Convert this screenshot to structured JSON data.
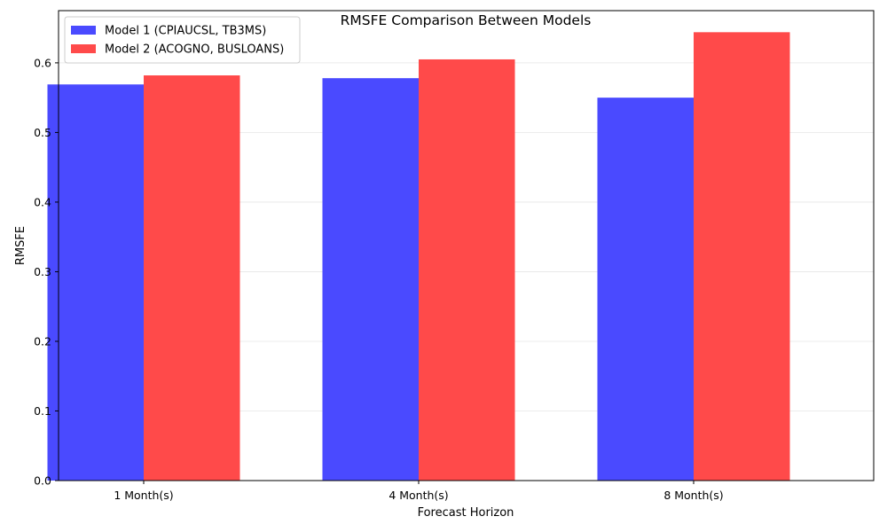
{
  "chart_data": {
    "type": "bar",
    "title": "RMSFE Comparison Between Models",
    "xlabel": "Forecast Horizon",
    "ylabel": "RMSFE",
    "categories": [
      "1 Month(s)",
      "4 Month(s)",
      "8 Month(s)"
    ],
    "series": [
      {
        "name": "Model 1 (CPIAUCSL, TB3MS)",
        "values": [
          0.569,
          0.578,
          0.55
        ],
        "color": "#4a4aff"
      },
      {
        "name": "Model 2 (ACOGNO, BUSLOANS)",
        "values": [
          0.582,
          0.605,
          0.644
        ],
        "color": "#ff4a4a"
      }
    ],
    "ylim": [
      0,
      0.675
    ],
    "yticks": [
      "0.0",
      "0.1",
      "0.2",
      "0.3",
      "0.4",
      "0.5",
      "0.6"
    ],
    "grid": "y",
    "legend": "top-left"
  }
}
